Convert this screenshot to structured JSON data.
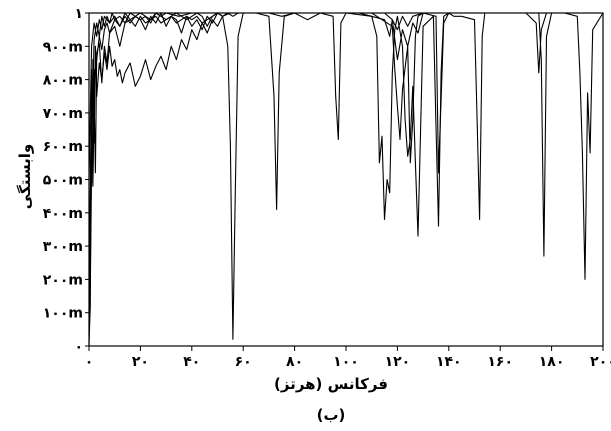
{
  "chart_data": {
    "type": "line",
    "xlabel": "فرکانس (هرتز)",
    "ylabel": "وابستگی",
    "caption": "(ب)",
    "xlim": [
      0,
      200
    ],
    "ylim": [
      0,
      1
    ],
    "x_tick_values": [
      0,
      20,
      40,
      60,
      80,
      100,
      120,
      140,
      160,
      180,
      200
    ],
    "x_tick_labels": [
      "۰",
      "۲۰",
      "۴۰",
      "۶۰",
      "۸۰",
      "۱۰۰",
      "۱۲۰",
      "۱۴۰",
      "۱۶۰",
      "۱۸۰",
      "۲۰۰"
    ],
    "y_tick_values": [
      0,
      0.1,
      0.2,
      0.3,
      0.4,
      0.5,
      0.6,
      0.7,
      0.8,
      0.9,
      1
    ],
    "y_tick_labels": [
      "۰",
      "۱۰۰m",
      "۲۰۰m",
      "۳۰۰m",
      "۴۰۰m",
      "۵۰۰m",
      "۶۰۰m",
      "۷۰۰m",
      "۸۰۰m",
      "۹۰۰m",
      "۱"
    ],
    "grid": false,
    "line_color": "#000000",
    "series": [
      {
        "x": [
          0,
          0.3,
          0.6,
          1,
          1.5,
          2,
          3,
          4,
          5,
          6,
          7,
          8,
          10,
          12,
          14,
          16,
          18,
          20,
          22,
          24,
          26,
          28,
          30,
          32,
          34,
          36,
          38,
          40,
          42,
          44,
          46,
          48,
          50,
          52,
          54,
          55,
          56,
          57,
          58,
          60,
          65,
          70,
          72,
          73,
          74,
          76,
          80,
          90,
          95,
          96,
          97,
          98,
          100,
          105,
          110,
          112,
          113,
          114,
          115,
          116,
          117,
          118,
          119,
          120,
          122,
          123,
          124,
          125,
          126,
          127,
          128,
          130,
          134,
          135,
          136,
          137,
          138,
          140,
          142,
          145,
          150,
          151,
          152,
          153,
          154,
          160,
          170,
          175,
          176,
          177,
          178,
          180,
          185,
          190,
          191,
          192,
          193,
          194,
          195,
          196,
          200
        ],
        "y": [
          0,
          0.25,
          0.55,
          0.72,
          0.48,
          0.82,
          0.86,
          0.93,
          0.89,
          0.95,
          0.97,
          0.94,
          0.98,
          0.96,
          0.99,
          0.97,
          0.99,
          0.98,
          0.99,
          0.97,
          1.0,
          0.99,
          0.98,
          0.99,
          1.0,
          0.99,
          0.98,
          0.99,
          1.0,
          0.99,
          0.96,
          0.99,
          1.0,
          0.99,
          0.9,
          0.6,
          0.02,
          0.5,
          0.93,
          1.0,
          1.0,
          0.99,
          0.75,
          0.41,
          0.82,
          0.99,
          1.0,
          1.0,
          0.99,
          0.75,
          0.62,
          0.97,
          1.0,
          1.0,
          0.99,
          0.93,
          0.55,
          0.63,
          0.38,
          0.5,
          0.46,
          0.82,
          0.95,
          0.99,
          0.9,
          0.68,
          0.57,
          0.62,
          0.78,
          0.55,
          0.33,
          0.96,
          0.99,
          0.66,
          0.36,
          0.82,
          0.99,
          1.0,
          0.99,
          0.99,
          0.98,
          0.68,
          0.38,
          0.93,
          1.0,
          1.0,
          1.0,
          1.0,
          0.86,
          0.27,
          0.93,
          1.0,
          1.0,
          0.99,
          0.82,
          0.58,
          0.2,
          0.76,
          0.58,
          0.95,
          1.0
        ]
      },
      {
        "x": [
          0,
          0.5,
          1,
          1.5,
          2,
          2.5,
          3,
          4,
          5,
          6,
          7,
          8,
          10,
          12,
          14,
          16,
          18,
          20,
          22,
          24,
          26,
          28,
          30,
          32,
          34,
          36,
          38,
          40,
          42,
          44,
          46,
          48,
          50,
          55,
          60,
          70,
          75,
          80,
          85,
          90,
          100,
          110,
          118,
          119,
          120,
          121,
          122,
          124,
          125,
          126,
          127,
          128,
          130,
          135,
          136,
          137,
          138,
          140,
          150,
          160,
          170,
          174,
          175,
          176,
          178,
          180,
          190,
          200
        ],
        "y": [
          0.01,
          0.12,
          0.83,
          0.49,
          0.75,
          0.52,
          0.88,
          0.91,
          0.79,
          0.9,
          0.85,
          0.94,
          0.96,
          0.9,
          0.97,
          0.98,
          0.96,
          0.99,
          0.97,
          0.98,
          0.99,
          0.97,
          0.98,
          0.99,
          0.97,
          0.98,
          0.99,
          0.98,
          0.99,
          0.97,
          0.98,
          0.99,
          1.0,
          1.0,
          1.0,
          1.0,
          0.99,
          1.0,
          0.98,
          1.0,
          1.0,
          1.0,
          0.96,
          0.83,
          0.72,
          0.62,
          0.77,
          0.9,
          0.55,
          0.68,
          0.93,
          0.99,
          1.0,
          0.99,
          0.52,
          0.74,
          0.97,
          1.0,
          1.0,
          1.0,
          1.0,
          0.97,
          0.82,
          0.95,
          1.0,
          1.0,
          1.0,
          1.0
        ]
      },
      {
        "x": [
          0,
          0.5,
          1,
          1.5,
          2,
          2.5,
          3,
          4,
          5,
          6,
          7,
          8,
          9,
          10,
          11,
          12,
          13,
          14,
          16,
          18,
          20,
          22,
          24,
          26,
          28,
          30,
          32,
          34,
          36,
          38,
          40,
          42,
          44,
          46,
          48,
          50,
          52,
          55,
          60,
          80,
          100,
          115,
          118,
          120,
          122,
          124,
          126,
          128,
          130,
          150,
          200
        ],
        "y": [
          0.03,
          0.2,
          0.52,
          0.86,
          0.61,
          0.9,
          0.75,
          0.85,
          0.8,
          0.88,
          0.83,
          0.9,
          0.84,
          0.86,
          0.81,
          0.83,
          0.79,
          0.82,
          0.85,
          0.78,
          0.81,
          0.86,
          0.8,
          0.84,
          0.87,
          0.83,
          0.9,
          0.86,
          0.92,
          0.89,
          0.95,
          0.92,
          0.97,
          0.94,
          0.98,
          0.96,
          0.99,
          1.0,
          1.0,
          1.0,
          1.0,
          1.0,
          0.98,
          0.86,
          0.95,
          0.9,
          0.97,
          0.94,
          1.0,
          1.0,
          1.0
        ]
      },
      {
        "x": [
          0,
          1,
          2,
          3,
          4,
          5,
          6,
          8,
          10,
          12,
          14,
          16,
          18,
          20,
          22,
          24,
          26,
          28,
          30,
          35,
          40,
          45,
          50,
          60,
          70,
          80,
          90,
          100,
          110,
          115,
          117,
          118,
          120,
          122,
          124,
          126,
          130,
          140,
          150,
          160,
          180,
          200
        ],
        "y": [
          0.5,
          0.9,
          0.97,
          0.93,
          0.98,
          0.95,
          0.99,
          0.97,
          0.99,
          0.96,
          1.0,
          0.98,
          0.99,
          1.0,
          0.99,
          0.98,
          1.0,
          0.99,
          1.0,
          0.99,
          1.0,
          1.0,
          1.0,
          1.0,
          1.0,
          1.0,
          1.0,
          1.0,
          0.99,
          0.98,
          0.93,
          0.98,
          0.95,
          0.99,
          0.96,
          0.99,
          1.0,
          1.0,
          1.0,
          1.0,
          1.0,
          1.0
        ]
      },
      {
        "x": [
          0,
          1,
          2,
          3,
          4,
          5,
          6,
          7,
          8,
          9,
          10,
          12,
          14,
          16,
          18,
          20,
          22,
          24,
          26,
          28,
          30,
          32,
          34,
          36,
          38,
          40,
          42,
          44,
          46,
          48,
          50,
          52,
          54,
          56,
          58,
          60,
          80,
          100,
          120,
          140,
          160,
          180,
          200
        ],
        "y": [
          0.3,
          0.6,
          0.92,
          0.97,
          0.93,
          0.99,
          0.96,
          0.99,
          0.97,
          1.0,
          0.98,
          0.99,
          0.97,
          1.0,
          0.99,
          0.98,
          0.95,
          0.99,
          0.97,
          1.0,
          0.96,
          0.99,
          0.98,
          0.94,
          0.99,
          0.96,
          0.98,
          0.95,
          0.99,
          0.97,
          1.0,
          0.99,
          1.0,
          0.99,
          1.0,
          1.0,
          1.0,
          1.0,
          1.0,
          1.0,
          1.0,
          1.0,
          1.0
        ]
      }
    ]
  }
}
